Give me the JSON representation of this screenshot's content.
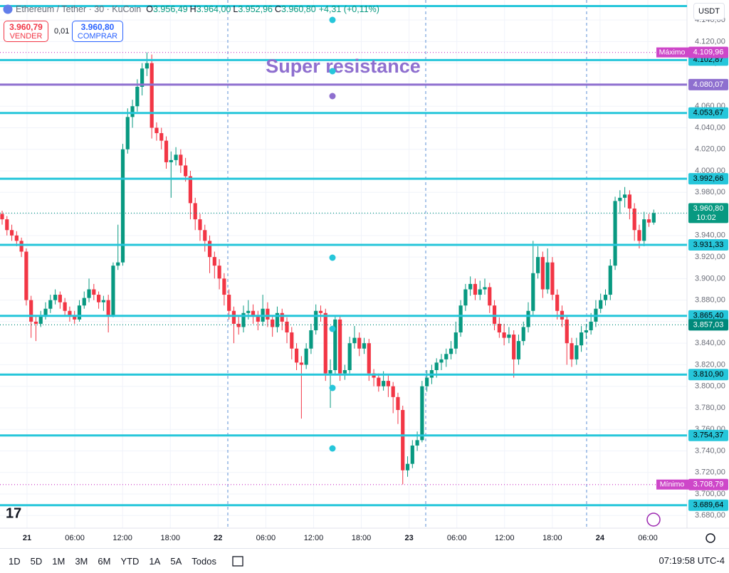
{
  "header": {
    "symbol": "Ethereum / Tether · 30 · KuCoin",
    "ohlc": [
      {
        "k": "O",
        "v": "3.956,49"
      },
      {
        "k": "H",
        "v": "3.964,00"
      },
      {
        "k": "L",
        "v": "3.952,96"
      },
      {
        "k": "C",
        "v": "3.960,80"
      }
    ],
    "change": "+4,31 (+0,11%)"
  },
  "trade": {
    "sell_price": "3.960,79",
    "sell": "VENDER",
    "spread": "0,01",
    "buy_price": "3.960,80",
    "buy": "COMPRAR"
  },
  "currency": "USDT",
  "ranges": [
    "1D",
    "5D",
    "1M",
    "3M",
    "6M",
    "YTD",
    "1A",
    "5A",
    "Todos"
  ],
  "clock": "07:19:58 UTC-4",
  "chart_data": {
    "type": "candlestick",
    "up_color": "#089981",
    "down_color": "#f23645",
    "grid": true,
    "ylim": [
      3668.3,
      4158.6
    ],
    "yticks": [
      {
        "value": 3680,
        "label": "3.680,00"
      },
      {
        "value": 3700,
        "label": "3.700,00"
      },
      {
        "value": 3720,
        "label": "3.720,00"
      },
      {
        "value": 3740,
        "label": "3.740,00"
      },
      {
        "value": 3760,
        "label": "3.760,00"
      },
      {
        "value": 3780,
        "label": "3.780,00"
      },
      {
        "value": 3800,
        "label": "3.800,00"
      },
      {
        "value": 3820,
        "label": "3.820,00"
      },
      {
        "value": 3840,
        "label": "3.840,00"
      },
      {
        "value": 3860,
        "label": "3.860,00"
      },
      {
        "value": 3880,
        "label": "3.880,00"
      },
      {
        "value": 3900,
        "label": "3.900,00"
      },
      {
        "value": 3920,
        "label": "3.920,00"
      },
      {
        "value": 3940,
        "label": "3.940,00"
      },
      {
        "value": 3960,
        "label": "3.960,00"
      },
      {
        "value": 3980,
        "label": "3.980,00"
      },
      {
        "value": 4000,
        "label": "4.000,00"
      },
      {
        "value": 4020,
        "label": "4.020,00"
      },
      {
        "value": 4040,
        "label": "4.040,00"
      },
      {
        "value": 4060,
        "label": "4.060,00"
      },
      {
        "value": 4080,
        "label": "4.080,00"
      },
      {
        "value": 4100,
        "label": "4.100,00"
      },
      {
        "value": 4120,
        "label": "4.120,00"
      },
      {
        "value": 4140,
        "label": "4.140,00"
      }
    ],
    "xticks": [
      "21",
      "06:00",
      "12:00",
      "18:00",
      "22",
      "06:00",
      "12:00",
      "18:00",
      "23",
      "06:00",
      "12:00",
      "18:00",
      "24",
      "06:00"
    ],
    "candles": [
      [
        3960,
        3963,
        3950,
        3955
      ],
      [
        3955,
        3958,
        3940,
        3945
      ],
      [
        3945,
        3950,
        3935,
        3940
      ],
      [
        3940,
        3944,
        3930,
        3935
      ],
      [
        3935,
        3938,
        3920,
        3925
      ],
      [
        3925,
        3928,
        3875,
        3880
      ],
      [
        3880,
        3884,
        3845,
        3860
      ],
      [
        3860,
        3866,
        3842,
        3858
      ],
      [
        3858,
        3870,
        3855,
        3866
      ],
      [
        3866,
        3878,
        3862,
        3872
      ],
      [
        3872,
        3885,
        3868,
        3880
      ],
      [
        3880,
        3890,
        3876,
        3885
      ],
      [
        3885,
        3888,
        3872,
        3878
      ],
      [
        3878,
        3882,
        3866,
        3870
      ],
      [
        3870,
        3874,
        3860,
        3865
      ],
      [
        3865,
        3870,
        3858,
        3862
      ],
      [
        3862,
        3880,
        3860,
        3875
      ],
      [
        3875,
        3888,
        3872,
        3882
      ],
      [
        3882,
        3900,
        3878,
        3890
      ],
      [
        3890,
        3895,
        3880,
        3885
      ],
      [
        3885,
        3888,
        3872,
        3878
      ],
      [
        3878,
        3884,
        3870,
        3880
      ],
      [
        3880,
        3885,
        3850,
        3866
      ],
      [
        3866,
        3915,
        3864,
        3912
      ],
      [
        3912,
        3950,
        3908,
        3915
      ],
      [
        3915,
        4025,
        3912,
        4020
      ],
      [
        4020,
        4058,
        4016,
        4050
      ],
      [
        4050,
        4066,
        4040,
        4060
      ],
      [
        4060,
        4085,
        4055,
        4078
      ],
      [
        4078,
        4100,
        4070,
        4095
      ],
      [
        4095,
        4110,
        4088,
        4100
      ],
      [
        4100,
        4108,
        4030,
        4040
      ],
      [
        4040,
        4045,
        4028,
        4035
      ],
      [
        4035,
        4040,
        4020,
        4028
      ],
      [
        4028,
        4032,
        4002,
        4008
      ],
      [
        4008,
        4018,
        3975,
        4010
      ],
      [
        4010,
        4022,
        4005,
        4015
      ],
      [
        4015,
        4020,
        3998,
        4005
      ],
      [
        4005,
        4012,
        3990,
        3995
      ],
      [
        3995,
        4000,
        3955,
        3970
      ],
      [
        3970,
        3975,
        3945,
        3955
      ],
      [
        3955,
        3960,
        3935,
        3945
      ],
      [
        3945,
        3950,
        3925,
        3935
      ],
      [
        3935,
        3940,
        3905,
        3920
      ],
      [
        3920,
        3925,
        3900,
        3912
      ],
      [
        3912,
        3918,
        3890,
        3900
      ],
      [
        3900,
        3905,
        3875,
        3885
      ],
      [
        3885,
        3890,
        3862,
        3870
      ],
      [
        3870,
        3874,
        3840,
        3858
      ],
      [
        3858,
        3866,
        3848,
        3855
      ],
      [
        3855,
        3875,
        3850,
        3868
      ],
      [
        3868,
        3880,
        3862,
        3870
      ],
      [
        3870,
        3876,
        3858,
        3865
      ],
      [
        3865,
        3870,
        3852,
        3860
      ],
      [
        3860,
        3885,
        3856,
        3872
      ],
      [
        3872,
        3878,
        3855,
        3862
      ],
      [
        3862,
        3866,
        3846,
        3855
      ],
      [
        3855,
        3874,
        3850,
        3868
      ],
      [
        3868,
        3872,
        3852,
        3860
      ],
      [
        3860,
        3864,
        3840,
        3850
      ],
      [
        3850,
        3855,
        3825,
        3835
      ],
      [
        3835,
        3840,
        3815,
        3822
      ],
      [
        3822,
        3828,
        3770,
        3820
      ],
      [
        3820,
        3840,
        3816,
        3835
      ],
      [
        3835,
        3858,
        3830,
        3852
      ],
      [
        3852,
        3876,
        3848,
        3870
      ],
      [
        3870,
        3875,
        3860,
        3868
      ],
      [
        3868,
        3872,
        3805,
        3812
      ],
      [
        3812,
        3825,
        3780,
        3815
      ],
      [
        3815,
        3866,
        3810,
        3862
      ],
      [
        3862,
        3866,
        3805,
        3812
      ],
      [
        3812,
        3820,
        3806,
        3815
      ],
      [
        3815,
        3846,
        3812,
        3840
      ],
      [
        3840,
        3856,
        3835,
        3845
      ],
      [
        3845,
        3850,
        3828,
        3835
      ],
      [
        3835,
        3845,
        3830,
        3840
      ],
      [
        3840,
        3844,
        3805,
        3812
      ],
      [
        3812,
        3816,
        3800,
        3808
      ],
      [
        3808,
        3812,
        3795,
        3800
      ],
      [
        3800,
        3814,
        3796,
        3805
      ],
      [
        3805,
        3810,
        3790,
        3800
      ],
      [
        3800,
        3804,
        3775,
        3790
      ],
      [
        3790,
        3794,
        3765,
        3778
      ],
      [
        3778,
        3782,
        3709,
        3722
      ],
      [
        3722,
        3735,
        3716,
        3728
      ],
      [
        3728,
        3750,
        3724,
        3745
      ],
      [
        3745,
        3758,
        3740,
        3750
      ],
      [
        3750,
        3805,
        3748,
        3800
      ],
      [
        3800,
        3815,
        3795,
        3808
      ],
      [
        3808,
        3820,
        3802,
        3815
      ],
      [
        3815,
        3826,
        3808,
        3822
      ],
      [
        3822,
        3830,
        3815,
        3825
      ],
      [
        3825,
        3835,
        3818,
        3830
      ],
      [
        3830,
        3842,
        3825,
        3835
      ],
      [
        3835,
        3860,
        3830,
        3850
      ],
      [
        3850,
        3880,
        3846,
        3875
      ],
      [
        3875,
        3895,
        3870,
        3890
      ],
      [
        3890,
        3902,
        3884,
        3895
      ],
      [
        3895,
        3900,
        3880,
        3885
      ],
      [
        3885,
        3898,
        3880,
        3890
      ],
      [
        3890,
        3900,
        3885,
        3892
      ],
      [
        3892,
        3896,
        3868,
        3875
      ],
      [
        3875,
        3880,
        3852,
        3858
      ],
      [
        3858,
        3864,
        3845,
        3850
      ],
      [
        3850,
        3858,
        3838,
        3845
      ],
      [
        3845,
        3855,
        3840,
        3848
      ],
      [
        3848,
        3852,
        3808,
        3825
      ],
      [
        3825,
        3848,
        3820,
        3842
      ],
      [
        3842,
        3860,
        3838,
        3855
      ],
      [
        3855,
        3878,
        3850,
        3870
      ],
      [
        3870,
        3935,
        3866,
        3905
      ],
      [
        3905,
        3930,
        3900,
        3920
      ],
      [
        3920,
        3925,
        3882,
        3890
      ],
      [
        3890,
        3928,
        3886,
        3915
      ],
      [
        3915,
        3920,
        3880,
        3885
      ],
      [
        3885,
        3890,
        3862,
        3870
      ],
      [
        3870,
        3875,
        3855,
        3862
      ],
      [
        3862,
        3866,
        3820,
        3840
      ],
      [
        3840,
        3845,
        3818,
        3825
      ],
      [
        3825,
        3845,
        3820,
        3838
      ],
      [
        3838,
        3856,
        3832,
        3850
      ],
      [
        3850,
        3858,
        3844,
        3852
      ],
      [
        3852,
        3868,
        3848,
        3860
      ],
      [
        3860,
        3880,
        3855,
        3872
      ],
      [
        3872,
        3886,
        3868,
        3880
      ],
      [
        3880,
        3890,
        3875,
        3885
      ],
      [
        3885,
        3918,
        3880,
        3912
      ],
      [
        3912,
        3976,
        3908,
        3972
      ],
      [
        3972,
        3982,
        3960,
        3975
      ],
      [
        3975,
        3985,
        3966,
        3978
      ],
      [
        3978,
        3982,
        3955,
        3965
      ],
      [
        3965,
        3970,
        3935,
        3945
      ],
      [
        3945,
        3950,
        3928,
        3935
      ],
      [
        3935,
        3962,
        3930,
        3955
      ],
      [
        3955,
        3960,
        3948,
        3952
      ],
      [
        3952,
        3964,
        3950,
        3960.8
      ]
    ],
    "price_lines": [
      {
        "value": 4153,
        "color": "#26c6da"
      },
      {
        "value": 4102.87,
        "label": "4.102,87",
        "color": "#26c6da"
      },
      {
        "value": 4080.07,
        "label": "4.080,07",
        "color": "#8e6fcf"
      },
      {
        "value": 4053.67,
        "label": "4.053,67",
        "color": "#26c6da"
      },
      {
        "value": 3992.66,
        "label": "3.992,66",
        "color": "#26c6da"
      },
      {
        "value": 3931.33,
        "label": "3.931,33",
        "color": "#26c6da"
      },
      {
        "value": 3865.4,
        "label": "3.865,40",
        "color": "#26c6da"
      },
      {
        "value": 3810.9,
        "label": "3.810,90",
        "color": "#26c6da"
      },
      {
        "value": 3754.37,
        "label": "3.754,37",
        "color": "#26c6da"
      },
      {
        "value": 3689.64,
        "label": "3.689,64",
        "color": "#26c6da"
      }
    ],
    "annotation": {
      "text": "Super resistance",
      "value": 4096,
      "color": "#8e6fcf"
    },
    "last_price": {
      "value": 3960.8,
      "label": "3.960,80",
      "countdown": "10:02",
      "color": "#089981"
    },
    "avg_line": {
      "value": 3857.03,
      "label": "3.857,03",
      "color": "#00897b"
    },
    "high_marker": {
      "name": "Máximo",
      "value": 4109.96,
      "label": "4.109,96",
      "color": "#ce47c9"
    },
    "low_marker": {
      "name": "Mínimo",
      "value": 3708.79,
      "label": "3.708,79",
      "color": "#ce47c9"
    }
  }
}
